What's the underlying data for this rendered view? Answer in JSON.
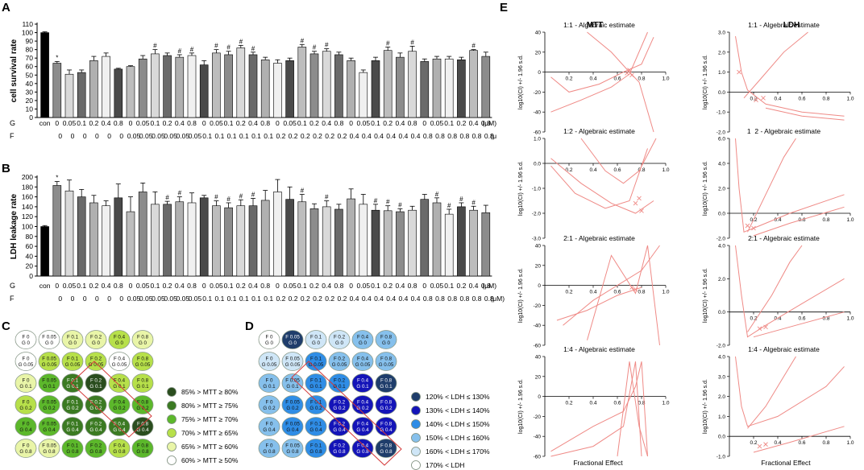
{
  "panel_letters": {
    "a": "A",
    "b": "B",
    "c": "C",
    "d": "D",
    "e": "E"
  },
  "chart_data": [
    {
      "type": "bar",
      "panel": "A",
      "ylabel": "cell survival rate",
      "ylim": [
        0,
        110
      ],
      "yticks": [
        0,
        10,
        20,
        30,
        40,
        50,
        60,
        70,
        80,
        90,
        100,
        110
      ],
      "row_labels": {
        "g": "G",
        "f": "F",
        "unit_g": "(μM)",
        "unit_f": "(μ"
      },
      "g_labels": [
        "con",
        "0",
        "0.05",
        "0.1",
        "0.2",
        "0.4",
        "0.8",
        "0",
        "0.05",
        "0.1",
        "0.2",
        "0.4",
        "0.8",
        "0",
        "0.05",
        "0.1",
        "0.2",
        "0.4",
        "0.8",
        "0",
        "0.05",
        "0.1",
        "0.2",
        "0.4",
        "0.8",
        "0",
        "0.05",
        "0.1",
        "0.2",
        "0.4",
        "0.8",
        "0",
        "0.05",
        "0.1",
        "0.2",
        "0.4",
        "0.8"
      ],
      "f_labels": [
        "",
        "0",
        "0",
        "0",
        "0",
        "0",
        "0",
        "0.05",
        "0.05",
        "0.05",
        "0.05",
        "0.05",
        "0.05",
        "0.1",
        "0.1",
        "0.1",
        "0.1",
        "0.1",
        "0.1",
        "0.2",
        "0.2",
        "0.2",
        "0.2",
        "0.2",
        "0.2",
        "0.4",
        "0.4",
        "0.4",
        "0.4",
        "0.4",
        "0.4",
        "0.8",
        "0.8",
        "0.8",
        "0.8",
        "0.8",
        "0.8"
      ],
      "values": [
        100,
        64,
        51,
        53,
        67,
        72,
        57,
        60,
        69,
        75,
        73,
        71,
        73,
        62,
        76,
        74,
        82,
        74,
        68,
        64,
        67,
        83,
        75,
        78,
        74,
        67,
        53,
        67,
        79,
        71,
        78,
        66,
        69,
        69,
        68,
        79,
        72
      ],
      "errors": [
        1,
        2,
        5,
        3,
        5,
        4,
        1,
        1,
        4,
        5,
        3,
        3,
        3,
        5,
        4,
        4,
        3,
        3,
        3,
        4,
        3,
        3,
        3,
        3,
        3,
        3,
        3,
        4,
        4,
        5,
        6,
        3,
        3,
        3,
        3,
        1,
        5
      ],
      "markers": [
        "",
        "*",
        "",
        "",
        "",
        "",
        "",
        "",
        "",
        "#",
        "",
        "#",
        "#",
        "",
        "#",
        "#",
        "#",
        "#",
        "",
        "",
        "",
        "#",
        "#",
        "#",
        "",
        "",
        "",
        "",
        "#",
        "",
        "#",
        "",
        "",
        "",
        "",
        "#",
        ""
      ]
    },
    {
      "type": "bar",
      "panel": "B",
      "ylabel": "LDH leakage rate",
      "ylim": [
        0,
        200
      ],
      "yticks": [
        0,
        20,
        40,
        60,
        80,
        100,
        120,
        140,
        160,
        180,
        200
      ],
      "row_labels": {
        "g": "G",
        "f": "F",
        "unit_g": "(μM)",
        "unit_f": "(μM)"
      },
      "g_labels": [
        "con",
        "0",
        "0.05",
        "0.1",
        "0.2",
        "0.4",
        "0.8",
        "0",
        "0.05",
        "0.1",
        "0.2",
        "0.4",
        "0.8",
        "0",
        "0.05",
        "0.1",
        "0.2",
        "0.4",
        "0.8",
        "0",
        "0.05",
        "0.1",
        "0.2",
        "0.4",
        "0.8",
        "0",
        "0.05",
        "0.1",
        "0.2",
        "0.4",
        "0.8",
        "0",
        "0.05",
        "0.1",
        "0.2",
        "0.4",
        "0.8"
      ],
      "f_labels": [
        "",
        "0",
        "0",
        "0",
        "0",
        "0",
        "0",
        "0.05",
        "0.05",
        "0.05",
        "0.05",
        "0.05",
        "0.05",
        "0.1",
        "0.1",
        "0.1",
        "0.1",
        "0.1",
        "0.1",
        "0.2",
        "0.2",
        "0.2",
        "0.2",
        "0.2",
        "0.2",
        "0.4",
        "0.4",
        "0.4",
        "0.4",
        "0.4",
        "0.4",
        "0.8",
        "0.8",
        "0.8",
        "0.8",
        "0.8",
        "0.8"
      ],
      "values": [
        100,
        183,
        172,
        160,
        148,
        142,
        158,
        130,
        170,
        145,
        145,
        150,
        148,
        158,
        142,
        138,
        142,
        142,
        153,
        170,
        155,
        150,
        136,
        140,
        135,
        156,
        145,
        133,
        132,
        130,
        133,
        155,
        148,
        125,
        140,
        133,
        128
      ],
      "errors": [
        2,
        8,
        22,
        15,
        15,
        10,
        28,
        30,
        18,
        25,
        6,
        10,
        20,
        5,
        10,
        10,
        12,
        15,
        20,
        25,
        25,
        15,
        10,
        12,
        10,
        20,
        20,
        12,
        10,
        6,
        8,
        10,
        10,
        10,
        8,
        8,
        15
      ],
      "markers": [
        "",
        "*",
        "",
        "",
        "",
        "",
        "",
        "",
        "",
        "",
        "#",
        "#",
        "",
        "",
        "#",
        "#",
        "#",
        "#",
        "",
        "",
        "",
        "#",
        "",
        "#",
        "",
        "",
        "",
        "#",
        "#",
        "#",
        "",
        "",
        "#",
        "#",
        "#",
        "#",
        ""
      ]
    },
    {
      "type": "grid",
      "panel": "C",
      "rows": [
        [
          "F 0\nG 0",
          "F 0.05\nG 0",
          "F 0.1\nG 0",
          "F 0.2\nG 0",
          "F 0.4\nG 0",
          "F 0.8\nG 0"
        ],
        [
          "F 0\nG 0.05",
          "F 0.05\nG 0.05",
          "F 0.1\nG 0.05",
          "F 0.2\nG 0.05",
          "F 0.4\nG 0.05",
          "F 0.8\nG 0.05"
        ],
        [
          "F 0\nG 0.1",
          "F 0.05\nG 0.1",
          "F 0.1\nG 0.1",
          "F 0.2\nG 0.1",
          "F 0.4\nG 0.1",
          "F 0.8\nG 0.1"
        ],
        [
          "F 0\nG 0.2",
          "F 0.05\nG 0.2",
          "F 0.1\nG 0.2",
          "F 0.2\nG 0.2",
          "F 0.4\nG 0.2",
          "F 0.8\nG 0.2"
        ],
        [
          "F 0\nG 0.4",
          "F 0.05\nG 0.4",
          "F 0.1\nG 0.4",
          "F 0.2\nG 0.4",
          "F 0.4\nG 0.4",
          "F 0.8\nG 0.4"
        ],
        [
          "F 0\nG 0.8",
          "F 0.05\nG 0.8",
          "F 0.1\nG 0.8",
          "F 0.2\nG 0.8",
          "F 0.4\nG 0.8",
          "F 0.8\nG 0.8"
        ]
      ],
      "levels": [
        [
          5,
          5,
          4,
          4,
          3,
          4
        ],
        [
          5,
          3,
          3,
          3,
          5,
          3
        ],
        [
          4,
          2,
          1,
          0,
          3,
          3
        ],
        [
          3,
          2,
          1,
          1,
          2,
          2
        ],
        [
          2,
          2,
          1,
          1,
          1,
          0
        ],
        [
          4,
          4,
          2,
          2,
          3,
          2
        ]
      ],
      "colors": [
        "#2a4d1e",
        "#3b7a22",
        "#5cb82b",
        "#b7e04a",
        "#e9f5a8",
        "#ffffff"
      ],
      "legend": [
        "85% > MTT ≥ 80%",
        "80% > MTT ≥ 75%",
        "75% > MTT ≥ 70%",
        "70% > MTT ≥ 65%",
        "65% > MTT ≥ 60%",
        "60% > MTT ≥ 50%"
      ]
    },
    {
      "type": "grid",
      "panel": "D",
      "rows": [
        [
          "F 0\nG 0",
          "F 0.05\nG 0",
          "F 0.1\nG 0",
          "F 0.2\nG 0",
          "F 0.4\nG 0",
          "F 0.8\nG 0"
        ],
        [
          "F 0\nG 0.05",
          "F 0.05\nG 0.05",
          "F 0.1\nG 0.05",
          "F 0.2\nG 0.05",
          "F 0.4\nG 0.05",
          "F 0.8\nG 0.05"
        ],
        [
          "F 0\nG 0.1",
          "F 0.05\nG 0.1",
          "F 0.1\nG 0.1",
          "F 0.2\nG 0.1",
          "F 0.4\nG 0.1",
          "F 0.8\nG 0.1"
        ],
        [
          "F 0\nG 0.2",
          "F 0.05\nG 0.2",
          "F 0.1\nG 0.2",
          "F 0.2\nG 0.2",
          "F 0.4\nG 0.2",
          "F 0.8\nG 0.2"
        ],
        [
          "F 0\nG 0.4",
          "F 0.05\nG 0.4",
          "F 0.1\nG 0.4",
          "F 0.2\nG 0.4",
          "F 0.4\nG 0.4",
          "F 0.8\nG 0.4"
        ],
        [
          "F 0\nG 0.8",
          "F 0.05\nG 0.8",
          "F 0.1\nG 0.8",
          "F 0.2\nG 0.8",
          "F 0.4\nG 0.8",
          "F 0.8\nG 0.8"
        ]
      ],
      "levels": [
        [
          5,
          0,
          4,
          4,
          3,
          3
        ],
        [
          4,
          4,
          2,
          3,
          3,
          3
        ],
        [
          3,
          3,
          2,
          2,
          1,
          0
        ],
        [
          3,
          2,
          2,
          1,
          1,
          1
        ],
        [
          3,
          2,
          2,
          1,
          1,
          1
        ],
        [
          3,
          3,
          2,
          1,
          1,
          0
        ]
      ],
      "colors": [
        "#1f3d6b",
        "#1414b8",
        "#2f8de6",
        "#86c0ec",
        "#cfe6f7",
        "#ffffff"
      ],
      "legend": [
        "120% < LDH ≤ 130%",
        "130% < LDH ≤ 140%",
        "140% < LDH ≤ 150%",
        "150% < LDH ≤ 160%",
        "160% < LDH ≤ 170%",
        "170% < LDH"
      ]
    },
    {
      "type": "line",
      "panel": "E",
      "col_titles": [
        "MTT",
        "LDH"
      ],
      "xlabel": "Fractional Effect",
      "ylabel": "log10(CI) +/- 1.96 s.d.",
      "xticks": [
        "0.2",
        "0.4",
        "0.6",
        "0.8",
        "1.0"
      ],
      "plots": [
        {
          "title": "1:1 - Algebraic estimate",
          "col": 0,
          "row": 0,
          "ymax": 40,
          "ymin": -60,
          "ticks": [
            "40",
            "20",
            "0",
            "-20",
            "-40",
            "-60"
          ],
          "tickvals": [
            40,
            20,
            0,
            -20,
            -40,
            -60
          ]
        },
        {
          "title": "1:2 - Algebraic estimate",
          "col": 0,
          "row": 1,
          "ymax": 1.0,
          "ymin": -3.0,
          "ticks": [
            "1.0",
            "0.0",
            "-1.0",
            "-2.0",
            "-3.0"
          ],
          "tickvals": [
            1,
            0,
            -1,
            -2,
            -3
          ]
        },
        {
          "title": "2:1 - Algebraic estimate",
          "col": 0,
          "row": 2,
          "ymax": 40,
          "ymin": -60,
          "ticks": [
            "40",
            "20",
            "0",
            "-20",
            "-40",
            "-60"
          ],
          "tickvals": [
            40,
            20,
            0,
            -20,
            -40,
            -60
          ]
        },
        {
          "title": "1:4 - Algebraic estimate",
          "col": 0,
          "row": 3,
          "ymax": 40,
          "ymin": -60,
          "ticks": [
            "40",
            "20",
            "0",
            "-20",
            "-40",
            "-60"
          ],
          "tickvals": [
            40,
            20,
            0,
            -20,
            -40,
            -60
          ]
        },
        {
          "title": "1:1 - Algebraic estimate",
          "col": 1,
          "row": 0,
          "ymax": 3.0,
          "ymin": -2.0,
          "ticks": [
            "3.0",
            "2.0",
            "1.0",
            "0.0",
            "-1.0",
            "-2.0"
          ],
          "tickvals": [
            3,
            2,
            1,
            0,
            -1,
            -2
          ]
        },
        {
          "title": "1  2 - Algebraic estimate",
          "col": 1,
          "row": 1,
          "ymax": 6.0,
          "ymin": -2.0,
          "ticks": [
            "6.0",
            "4.0",
            "2.0",
            "0.0",
            "-2.0"
          ],
          "tickvals": [
            6,
            4,
            2,
            0,
            -2
          ]
        },
        {
          "title": "2:1 - Algebraic estimate",
          "col": 1,
          "row": 2,
          "ymax": 4.0,
          "ymin": -2.0,
          "ticks": [
            "4.0",
            "2.0",
            "0.0",
            "-2.0"
          ],
          "tickvals": [
            4,
            2,
            0,
            -2
          ]
        },
        {
          "title": "1:4 - Algebraic estimate",
          "col": 1,
          "row": 3,
          "ymax": 4.0,
          "ymin": -1.0,
          "ticks": [
            "4.0",
            "3.0",
            "2.0",
            "1.0",
            "0.0",
            "-1.0"
          ],
          "tickvals": [
            4,
            3,
            2,
            1,
            0,
            -1
          ]
        }
      ]
    }
  ]
}
